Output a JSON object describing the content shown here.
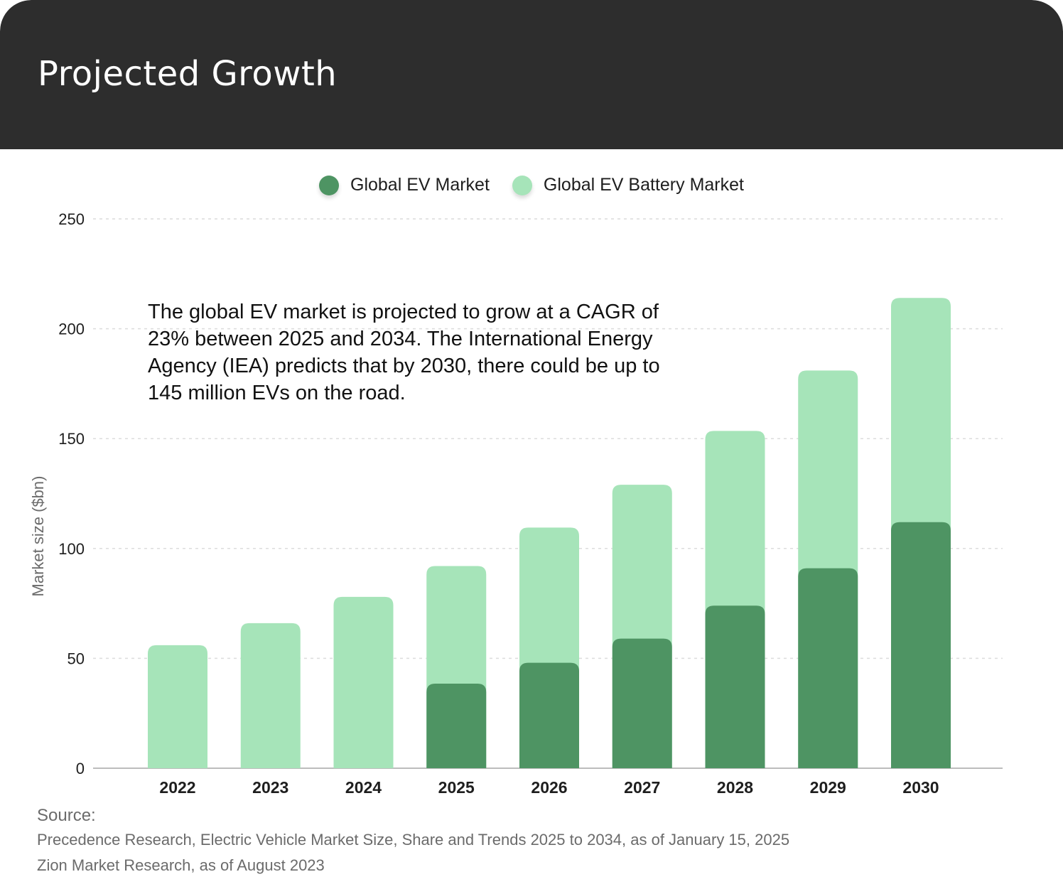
{
  "header": {
    "title": "Projected Growth"
  },
  "colors": {
    "ev_market": "#4e9463",
    "battery_market": "#a6e4b9",
    "header_bg": "#2d2d2d"
  },
  "chart_data": {
    "type": "bar",
    "stacked": false,
    "overlapping": true,
    "categories": [
      "2022",
      "2023",
      "2024",
      "2025",
      "2026",
      "2027",
      "2028",
      "2029",
      "2030"
    ],
    "series": [
      {
        "name": "Global EV Market",
        "color": "#4e9463",
        "values": [
          null,
          null,
          null,
          38.5,
          48,
          59,
          74,
          91,
          112
        ]
      },
      {
        "name": "Global EV Battery Market",
        "color": "#a6e4b9",
        "values": [
          56,
          66,
          78,
          92,
          109.5,
          129,
          153.5,
          181,
          214
        ]
      }
    ],
    "ylabel": "Market size ($bn)",
    "ylim": [
      0,
      250
    ],
    "yticks": [
      0,
      50,
      100,
      150,
      200,
      250
    ],
    "grid": true,
    "legend": "top-center",
    "annotation": "The global EV market is projected to grow at a CAGR of 23% between 2025 and 2034. The International Energy Agency (IEA) predicts that by 2030, there could be up to 145 million EVs on the road."
  },
  "source": {
    "title": "Source:",
    "lines": [
      "Precedence Research, Electric Vehicle Market Size, Share and Trends 2025 to 2034, as of January 15, 2025",
      "Zion Market Research, as of August 2023"
    ]
  }
}
